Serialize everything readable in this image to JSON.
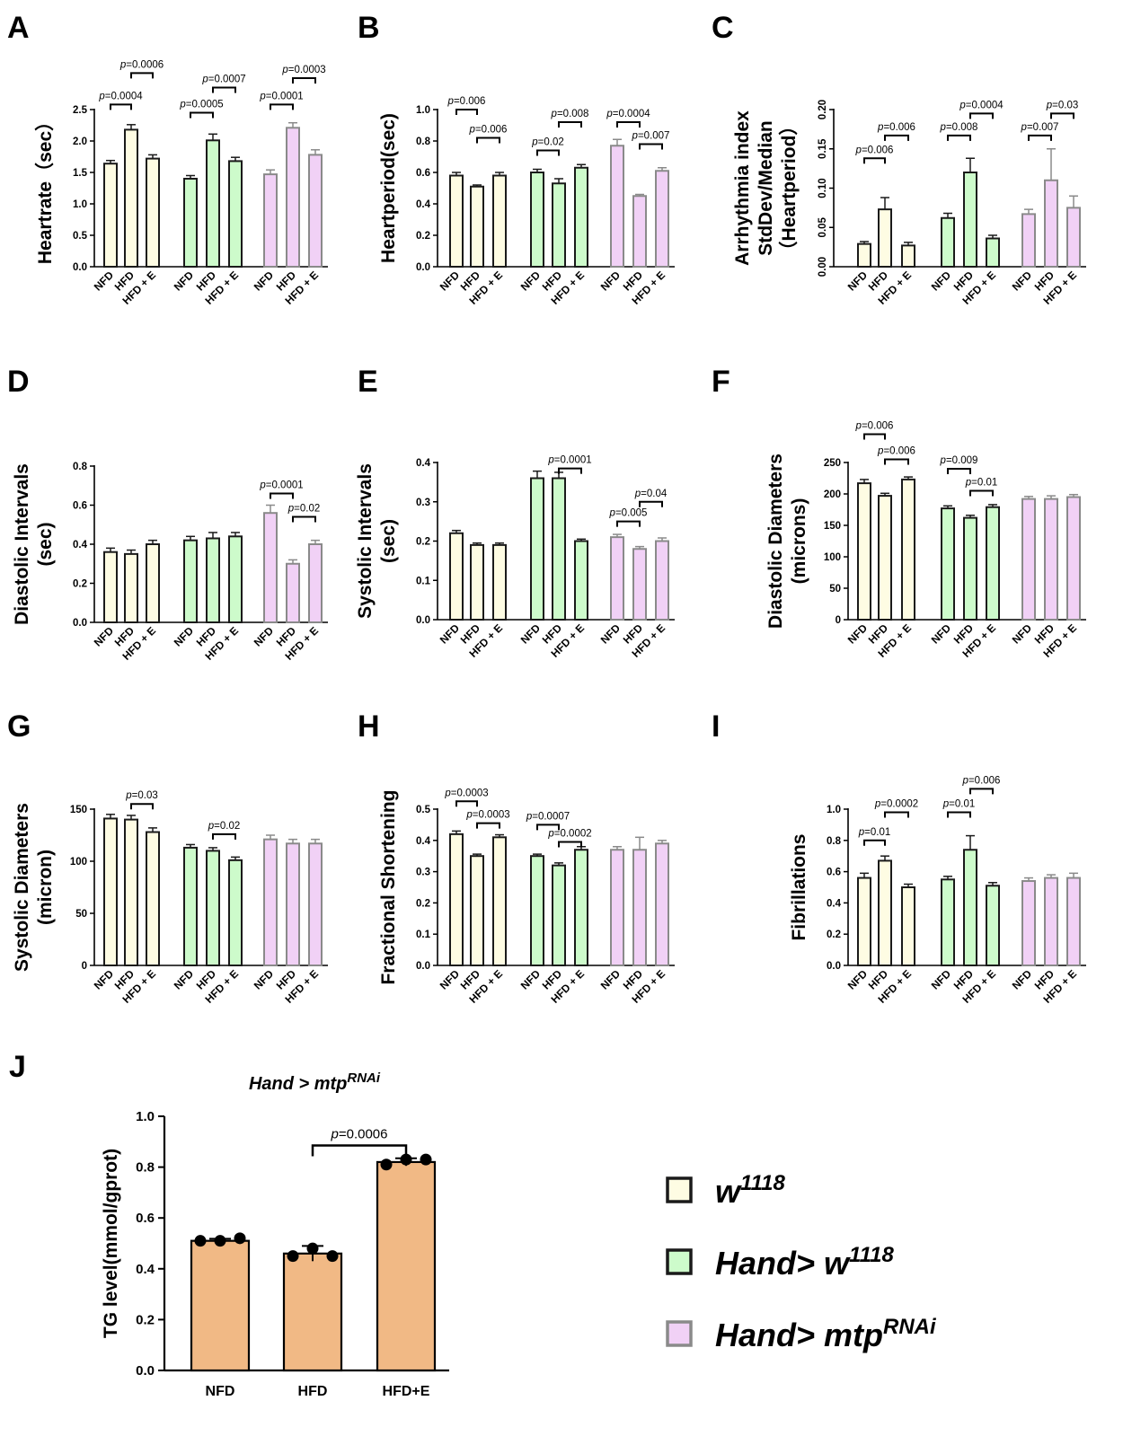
{
  "chart_data": [
    {
      "panel": "A",
      "type": "bar",
      "ylabel": "Heartrate（sec）",
      "yticks": [
        0.0,
        0.5,
        1.0,
        1.5,
        2.0,
        2.5
      ],
      "ylim": [
        0,
        2.5
      ],
      "tick_decimals": 1,
      "groups": [
        {
          "series": "w1118",
          "labels": [
            "NFD",
            "HFD",
            "HFD + E"
          ],
          "values": [
            1.64,
            2.18,
            1.72
          ],
          "errors": [
            0.05,
            0.08,
            0.06
          ]
        },
        {
          "series": "Hand>w1118",
          "labels": [
            "NFD",
            "HFD",
            "HFD + E"
          ],
          "values": [
            1.4,
            2.01,
            1.68
          ],
          "errors": [
            0.05,
            0.1,
            0.06
          ]
        },
        {
          "series": "Hand>mtpRNAi",
          "labels": [
            "NFD",
            "HFD",
            "HFD + E"
          ],
          "values": [
            1.47,
            2.21,
            1.78
          ],
          "errors": [
            0.07,
            0.08,
            0.08
          ]
        }
      ],
      "annotations": [
        {
          "group": 0,
          "from": 0,
          "to": 1,
          "y": 2.58,
          "text": "=0.0004"
        },
        {
          "group": 0,
          "from": 1,
          "to": 2,
          "y": 3.08,
          "text": "=0.0006"
        },
        {
          "group": 1,
          "from": 0,
          "to": 1,
          "y": 2.45,
          "text": "=0.0005"
        },
        {
          "group": 1,
          "from": 1,
          "to": 2,
          "y": 2.85,
          "text": "=0.0007"
        },
        {
          "group": 2,
          "from": 0,
          "to": 1,
          "y": 2.58,
          "text": "=0.0001"
        },
        {
          "group": 2,
          "from": 1,
          "to": 2,
          "y": 3.0,
          "text": "=0.0003"
        }
      ]
    },
    {
      "panel": "B",
      "type": "bar",
      "ylabel": "Heartperiod(sec)",
      "yticks": [
        0.0,
        0.2,
        0.4,
        0.6,
        0.8,
        1.0
      ],
      "ylim": [
        0,
        1.0
      ],
      "tick_decimals": 1,
      "groups": [
        {
          "series": "w1118",
          "labels": [
            "NFD",
            "HFD",
            "HFD + E"
          ],
          "values": [
            0.58,
            0.51,
            0.58
          ],
          "errors": [
            0.02,
            0.01,
            0.02
          ]
        },
        {
          "series": "Hand>w1118",
          "labels": [
            "NFD",
            "HFD",
            "HFD + E"
          ],
          "values": [
            0.6,
            0.53,
            0.63
          ],
          "errors": [
            0.02,
            0.03,
            0.02
          ]
        },
        {
          "series": "Hand>mtpRNAi",
          "labels": [
            "NFD",
            "HFD",
            "HFD + E"
          ],
          "values": [
            0.77,
            0.45,
            0.61
          ],
          "errors": [
            0.04,
            0.01,
            0.02
          ]
        }
      ],
      "annotations": [
        {
          "group": 0,
          "from": 0,
          "to": 1,
          "y": 1.0,
          "text": "=0.006"
        },
        {
          "group": 0,
          "from": 1,
          "to": 2,
          "y": 0.82,
          "text": "=0.006"
        },
        {
          "group": 1,
          "from": 0,
          "to": 1,
          "y": 0.74,
          "text": "=0.02"
        },
        {
          "group": 1,
          "from": 1,
          "to": 2,
          "y": 0.92,
          "text": "=0.008"
        },
        {
          "group": 2,
          "from": 0,
          "to": 1,
          "y": 0.92,
          "text": "=0.0004"
        },
        {
          "group": 2,
          "from": 1,
          "to": 2,
          "y": 0.78,
          "text": "=0.007"
        }
      ]
    },
    {
      "panel": "C",
      "type": "bar",
      "ylabel": [
        "Arrhythmia index",
        "StdDev/Median",
        "（Heartperiod）"
      ],
      "yticks": [
        0.0,
        0.05,
        0.1,
        0.15,
        0.2
      ],
      "ylim": [
        0,
        0.2
      ],
      "tick_decimals": 2,
      "rotate_ticks": true,
      "groups": [
        {
          "series": "w1118",
          "labels": [
            "NFD",
            "HFD",
            "HFD + E"
          ],
          "values": [
            0.029,
            0.073,
            0.027
          ],
          "errors": [
            0.003,
            0.015,
            0.004
          ]
        },
        {
          "series": "Hand>w1118",
          "labels": [
            "NFD",
            "HFD",
            "HFD + E"
          ],
          "values": [
            0.062,
            0.12,
            0.036
          ],
          "errors": [
            0.006,
            0.018,
            0.004
          ]
        },
        {
          "series": "Hand>mtpRNAi",
          "labels": [
            "NFD",
            "HFD",
            "HFD + E"
          ],
          "values": [
            0.067,
            0.11,
            0.075
          ],
          "errors": [
            0.006,
            0.04,
            0.015
          ]
        }
      ],
      "annotations": [
        {
          "group": 0,
          "from": 0,
          "to": 1,
          "y": 0.138,
          "text": "=0.006"
        },
        {
          "group": 0,
          "from": 1,
          "to": 2,
          "y": 0.167,
          "text": "=0.006"
        },
        {
          "group": 1,
          "from": 0,
          "to": 1,
          "y": 0.167,
          "text": "=0.008"
        },
        {
          "group": 1,
          "from": 1,
          "to": 2,
          "y": 0.195,
          "text": "=0.0004"
        },
        {
          "group": 2,
          "from": 0,
          "to": 1,
          "y": 0.167,
          "text": "=0.007"
        },
        {
          "group": 2,
          "from": 1,
          "to": 2,
          "y": 0.195,
          "text": "=0.03"
        }
      ]
    },
    {
      "panel": "D",
      "type": "bar",
      "ylabel": [
        "Diastolic Intervals",
        "(sec)"
      ],
      "yticks": [
        0.0,
        0.2,
        0.4,
        0.6,
        0.8
      ],
      "ylim": [
        0,
        0.8
      ],
      "tick_decimals": 1,
      "groups": [
        {
          "series": "w1118",
          "labels": [
            "NFD",
            "HFD",
            "HFD + E"
          ],
          "values": [
            0.36,
            0.35,
            0.4
          ],
          "errors": [
            0.02,
            0.02,
            0.02
          ]
        },
        {
          "series": "Hand>w1118",
          "labels": [
            "NFD",
            "HFD",
            "HFD + E"
          ],
          "values": [
            0.42,
            0.43,
            0.44
          ],
          "errors": [
            0.02,
            0.03,
            0.02
          ]
        },
        {
          "series": "Hand>mtpRNAi",
          "labels": [
            "NFD",
            "HFD",
            "HFD + E"
          ],
          "values": [
            0.56,
            0.3,
            0.4
          ],
          "errors": [
            0.04,
            0.02,
            0.02
          ]
        }
      ],
      "annotations": [
        {
          "group": 2,
          "from": 0,
          "to": 1,
          "y": 0.66,
          "text": "=0.0001"
        },
        {
          "group": 2,
          "from": 1,
          "to": 2,
          "y": 0.54,
          "text": "=0.02"
        }
      ]
    },
    {
      "panel": "E",
      "type": "bar",
      "ylabel": [
        "Systolic Intervals",
        "(sec)"
      ],
      "yticks": [
        0.0,
        0.1,
        0.2,
        0.3,
        0.4
      ],
      "ylim": [
        0,
        0.4
      ],
      "tick_decimals": 1,
      "groups": [
        {
          "series": "w1118",
          "labels": [
            "NFD",
            "HFD",
            "HFD + E"
          ],
          "values": [
            0.22,
            0.19,
            0.19
          ],
          "errors": [
            0.007,
            0.005,
            0.005
          ]
        },
        {
          "series": "Hand>w1118",
          "labels": [
            "NFD",
            "HFD",
            "HFD + E"
          ],
          "values": [
            0.36,
            0.36,
            0.2
          ],
          "errors": [
            0.018,
            0.015,
            0.005
          ]
        },
        {
          "series": "Hand>mtpRNAi",
          "labels": [
            "NFD",
            "HFD",
            "HFD + E"
          ],
          "values": [
            0.21,
            0.18,
            0.2
          ],
          "errors": [
            0.007,
            0.006,
            0.008
          ]
        }
      ],
      "annotations": [
        {
          "group": 1,
          "from": 1,
          "to": 2,
          "y": 0.385,
          "text": "=0.0001"
        },
        {
          "group": 2,
          "from": 0,
          "to": 1,
          "y": 0.25,
          "text": "=0.005"
        },
        {
          "group": 2,
          "from": 1,
          "to": 2,
          "y": 0.3,
          "text": "=0.04"
        }
      ]
    },
    {
      "panel": "F",
      "type": "bar",
      "ylabel": [
        "Diastolic Diameters",
        "(microns)"
      ],
      "yticks": [
        0,
        50,
        100,
        150,
        200,
        250
      ],
      "ylim": [
        0,
        250
      ],
      "tick_decimals": 0,
      "groups": [
        {
          "series": "w1118",
          "labels": [
            "NFD",
            "HFD",
            "HFD + E"
          ],
          "values": [
            217,
            197,
            223
          ],
          "errors": [
            6,
            4,
            4
          ]
        },
        {
          "series": "Hand>w1118",
          "labels": [
            "NFD",
            "HFD",
            "HFD + E"
          ],
          "values": [
            177,
            162,
            179
          ],
          "errors": [
            4,
            4,
            4
          ]
        },
        {
          "series": "Hand>mtpRNAi",
          "labels": [
            "NFD",
            "HFD",
            "HFD + E"
          ],
          "values": [
            192,
            192,
            195
          ],
          "errors": [
            4,
            5,
            4
          ]
        }
      ],
      "annotations": [
        {
          "group": 0,
          "from": 0,
          "to": 1,
          "y": 295,
          "text": "=0.006"
        },
        {
          "group": 0,
          "from": 1,
          "to": 2,
          "y": 255,
          "text": "=0.006"
        },
        {
          "group": 1,
          "from": 0,
          "to": 1,
          "y": 240,
          "text": "=0.009"
        },
        {
          "group": 1,
          "from": 1,
          "to": 2,
          "y": 205,
          "text": "=0.01"
        }
      ]
    },
    {
      "panel": "G",
      "type": "bar",
      "ylabel": [
        "Systolic Diameters",
        "(micron)"
      ],
      "yticks": [
        0,
        50,
        100,
        150
      ],
      "ylim": [
        0,
        150
      ],
      "tick_decimals": 0,
      "groups": [
        {
          "series": "w1118",
          "labels": [
            "NFD",
            "HFD",
            "HFD + E"
          ],
          "values": [
            141,
            140,
            128
          ],
          "errors": [
            4,
            4,
            4
          ]
        },
        {
          "series": "Hand>w1118",
          "labels": [
            "NFD",
            "HFD",
            "HFD + E"
          ],
          "values": [
            113,
            110,
            101
          ],
          "errors": [
            3,
            3,
            3
          ]
        },
        {
          "series": "Hand>mtpRNAi",
          "labels": [
            "NFD",
            "HFD",
            "HFD + E"
          ],
          "values": [
            121,
            117,
            117
          ],
          "errors": [
            4,
            4,
            4
          ]
        }
      ],
      "annotations": [
        {
          "group": 0,
          "from": 1,
          "to": 2,
          "y": 155,
          "text": "=0.03"
        },
        {
          "group": 1,
          "from": 1,
          "to": 2,
          "y": 126,
          "text": "=0.02"
        }
      ]
    },
    {
      "panel": "H",
      "type": "bar",
      "ylabel": "Fractional Shortening",
      "yticks": [
        0.0,
        0.1,
        0.2,
        0.3,
        0.4,
        0.5
      ],
      "ylim": [
        0,
        0.5
      ],
      "tick_decimals": 1,
      "groups": [
        {
          "series": "w1118",
          "labels": [
            "NFD",
            "HFD",
            "HFD + E"
          ],
          "values": [
            0.42,
            0.35,
            0.41
          ],
          "errors": [
            0.01,
            0.006,
            0.008
          ]
        },
        {
          "series": "Hand>w1118",
          "labels": [
            "NFD",
            "HFD",
            "HFD + E"
          ],
          "values": [
            0.35,
            0.32,
            0.37
          ],
          "errors": [
            0.006,
            0.008,
            0.01
          ]
        },
        {
          "series": "Hand>mtpRNAi",
          "labels": [
            "NFD",
            "HFD",
            "HFD + E"
          ],
          "values": [
            0.37,
            0.37,
            0.39
          ],
          "errors": [
            0.01,
            0.04,
            0.01
          ]
        }
      ],
      "annotations": [
        {
          "group": 0,
          "from": 0,
          "to": 1,
          "y": 0.525,
          "text": "=0.0003"
        },
        {
          "group": 0,
          "from": 1,
          "to": 2,
          "y": 0.455,
          "text": "=0.0003"
        },
        {
          "group": 1,
          "from": 0,
          "to": 1,
          "y": 0.45,
          "text": "=0.0007"
        },
        {
          "group": 1,
          "from": 1,
          "to": 2,
          "y": 0.395,
          "text": "=0.0002"
        }
      ]
    },
    {
      "panel": "I",
      "type": "bar",
      "ylabel": "Fibrillations",
      "yticks": [
        0.0,
        0.2,
        0.4,
        0.6,
        0.8,
        1.0
      ],
      "ylim": [
        0,
        1.0
      ],
      "tick_decimals": 1,
      "groups": [
        {
          "series": "w1118",
          "labels": [
            "NFD",
            "HFD",
            "HFD + E"
          ],
          "values": [
            0.56,
            0.67,
            0.5
          ],
          "errors": [
            0.03,
            0.03,
            0.02
          ]
        },
        {
          "series": "Hand>w1118",
          "labels": [
            "NFD",
            "HFD",
            "HFD + E"
          ],
          "values": [
            0.55,
            0.74,
            0.51
          ],
          "errors": [
            0.02,
            0.09,
            0.02
          ]
        },
        {
          "series": "Hand>mtpRNAi",
          "labels": [
            "NFD",
            "HFD",
            "HFD + E"
          ],
          "values": [
            0.54,
            0.56,
            0.56
          ],
          "errors": [
            0.02,
            0.02,
            0.03
          ]
        }
      ],
      "annotations": [
        {
          "group": 0,
          "from": 0,
          "to": 1,
          "y": 0.8,
          "text": "=0.01"
        },
        {
          "group": 0,
          "from": 1,
          "to": 2,
          "y": 0.98,
          "text": "=0.0002"
        },
        {
          "group": 1,
          "from": 0,
          "to": 1,
          "y": 0.98,
          "text": "=0.01"
        },
        {
          "group": 1,
          "from": 1,
          "to": 2,
          "y": 1.13,
          "text": "=0.006"
        }
      ]
    },
    {
      "panel": "J",
      "type": "bar",
      "title": "Hand > mtp",
      "title_sup": "RNAi",
      "ylabel": "TG level(mmol/gprot)",
      "yticks": [
        0.0,
        0.2,
        0.4,
        0.6,
        0.8,
        1.0
      ],
      "ylim": [
        0,
        1.0
      ],
      "tick_decimals": 1,
      "categories": [
        "NFD",
        "HFD",
        "HFD+E"
      ],
      "values": [
        0.51,
        0.46,
        0.82
      ],
      "errors": [
        0.008,
        0.03,
        0.015
      ],
      "points": [
        [
          0.51,
          0.51,
          0.52
        ],
        [
          0.45,
          0.48,
          0.45
        ],
        [
          0.81,
          0.83,
          0.83
        ]
      ],
      "annotations": [
        {
          "from": 1,
          "to": 2,
          "y": 0.885,
          "text": "=0.0006"
        }
      ]
    }
  ],
  "legend": [
    {
      "series": "w1118",
      "label": "w",
      "sup": "1118",
      "fill": "#FEFCE3",
      "stroke": "#1a1a1a"
    },
    {
      "series": "Hand>w1118",
      "label": "Hand> w",
      "sup": "1118",
      "fill": "#CDFBCB",
      "stroke": "#1a1a1a"
    },
    {
      "series": "Hand>mtpRNAi",
      "label": "Hand> mtp",
      "sup": "RNAi",
      "fill": "#F1D1F6",
      "stroke": "#8a8a8a"
    }
  ],
  "colors": {
    "w1118_fill": "#FEFCE3",
    "hand_w_fill": "#CDFBCB",
    "hand_mtp_fill": "#F1D1F6",
    "dark_stroke": "#1a1a1a",
    "gray_stroke": "#8a8a8a",
    "tg_fill": "#F1B985"
  },
  "p_prefix": "p"
}
